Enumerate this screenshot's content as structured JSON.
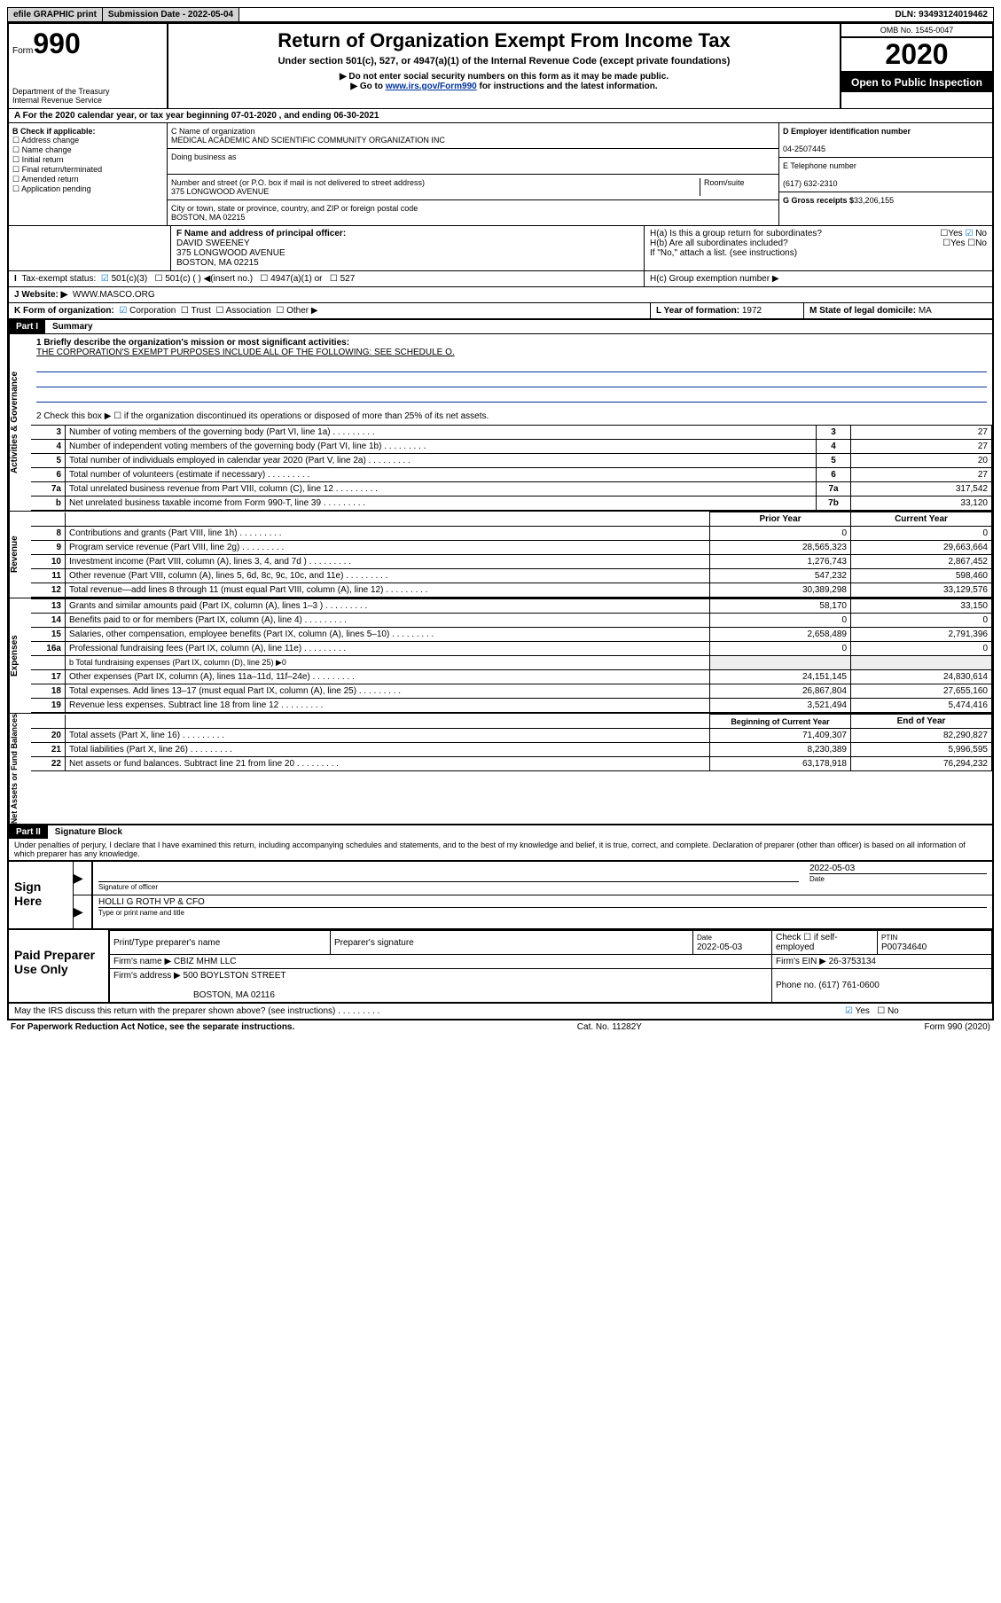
{
  "top_bar": {
    "efile": "efile GRAPHIC print",
    "submission_label": "Submission Date - 2022-05-04",
    "dln": "DLN: 93493124019462"
  },
  "header": {
    "form_label": "Form",
    "form_number": "990",
    "dept": "Department of the Treasury",
    "irs": "Internal Revenue Service",
    "title": "Return of Organization Exempt From Income Tax",
    "subtitle": "Under section 501(c), 527, or 4947(a)(1) of the Internal Revenue Code (except private foundations)",
    "note1": "▶ Do not enter social security numbers on this form as it may be made public.",
    "note2_pre": "▶ Go to ",
    "note2_link": "www.irs.gov/Form990",
    "note2_post": " for instructions and the latest information.",
    "omb": "OMB No. 1545-0047",
    "year": "2020",
    "open": "Open to Public Inspection"
  },
  "A": {
    "text": "A For the 2020 calendar year, or tax year beginning 07-01-2020    , and ending 06-30-2021"
  },
  "B": {
    "label": "B Check if applicable:",
    "items": [
      "Address change",
      "Name change",
      "Initial return",
      "Final return/terminated",
      "Amended return",
      "Application pending"
    ]
  },
  "C": {
    "name_label": "C Name of organization",
    "name": "MEDICAL ACADEMIC AND SCIENTIFIC COMMUNITY ORGANIZATION INC",
    "dba_label": "Doing business as",
    "addr_label": "Number and street (or P.O. box if mail is not delivered to street address)",
    "room_label": "Room/suite",
    "addr": "375 LONGWOOD AVENUE",
    "city_label": "City or town, state or province, country, and ZIP or foreign postal code",
    "city": "BOSTON, MA  02215"
  },
  "D": {
    "label": "D Employer identification number",
    "value": "04-2507445"
  },
  "E": {
    "label": "E Telephone number",
    "value": "(617) 632-2310"
  },
  "G": {
    "label": "G Gross receipts $",
    "value": "33,206,155"
  },
  "F": {
    "label": "F  Name and address of principal officer:",
    "name": "DAVID SWEENEY",
    "addr1": "375 LONGWOOD AVENUE",
    "addr2": "BOSTON, MA  02215"
  },
  "H": {
    "a": "H(a)  Is this a group return for subordinates?",
    "b": "H(b)  Are all subordinates included?",
    "note": "If \"No,\" attach a list. (see instructions)",
    "c": "H(c)  Group exemption number ▶",
    "yes": "Yes",
    "no": "No"
  },
  "I": {
    "label": "Tax-exempt status:",
    "opts": [
      "501(c)(3)",
      "501(c) (   ) ◀(insert no.)",
      "4947(a)(1) or",
      "527"
    ]
  },
  "J": {
    "label": "J    Website: ▶",
    "value": "WWW.MASCO.ORG"
  },
  "K": {
    "label": "K Form of organization:",
    "opts": [
      "Corporation",
      "Trust",
      "Association",
      "Other ▶"
    ]
  },
  "L": {
    "label": "L Year of formation:",
    "value": "1972"
  },
  "M": {
    "label": "M State of legal domicile:",
    "value": "MA"
  },
  "part1": {
    "header": "Part I",
    "title": "Summary",
    "q1": "1  Briefly describe the organization's mission or most significant activities:",
    "mission": "THE CORPORATION'S EXEMPT PURPOSES INCLUDE ALL OF THE FOLLOWING: SEE SCHEDULE O.",
    "q2": "2    Check this box ▶ ☐  if the organization discontinued its operations or disposed of more than 25% of its net assets.",
    "governance_label": "Activities & Governance",
    "revenue_label": "Revenue",
    "expenses_label": "Expenses",
    "netassets_label": "Net Assets or Fund Balances",
    "lines_gov": [
      {
        "n": "3",
        "d": "Number of voting members of the governing body (Part VI, line 1a)",
        "c": "3",
        "v": "27"
      },
      {
        "n": "4",
        "d": "Number of independent voting members of the governing body (Part VI, line 1b)",
        "c": "4",
        "v": "27"
      },
      {
        "n": "5",
        "d": "Total number of individuals employed in calendar year 2020 (Part V, line 2a)",
        "c": "5",
        "v": "20"
      },
      {
        "n": "6",
        "d": "Total number of volunteers (estimate if necessary)",
        "c": "6",
        "v": "27"
      },
      {
        "n": "7a",
        "d": "Total unrelated business revenue from Part VIII, column (C), line 12",
        "c": "7a",
        "v": "317,542"
      },
      {
        "n": "b",
        "d": "Net unrelated business taxable income from Form 990-T, line 39",
        "c": "7b",
        "v": "33,120"
      }
    ],
    "col_prior": "Prior Year",
    "col_current": "Current Year",
    "col_begin": "Beginning of Current Year",
    "col_end": "End of Year",
    "lines_rev": [
      {
        "n": "8",
        "d": "Contributions and grants (Part VIII, line 1h)",
        "p": "0",
        "c": "0"
      },
      {
        "n": "9",
        "d": "Program service revenue (Part VIII, line 2g)",
        "p": "28,565,323",
        "c": "29,663,664"
      },
      {
        "n": "10",
        "d": "Investment income (Part VIII, column (A), lines 3, 4, and 7d )",
        "p": "1,276,743",
        "c": "2,867,452"
      },
      {
        "n": "11",
        "d": "Other revenue (Part VIII, column (A), lines 5, 6d, 8c, 9c, 10c, and 11e)",
        "p": "547,232",
        "c": "598,460"
      },
      {
        "n": "12",
        "d": "Total revenue—add lines 8 through 11 (must equal Part VIII, column (A), line 12)",
        "p": "30,389,298",
        "c": "33,129,576"
      }
    ],
    "lines_exp": [
      {
        "n": "13",
        "d": "Grants and similar amounts paid (Part IX, column (A), lines 1–3 )",
        "p": "58,170",
        "c": "33,150"
      },
      {
        "n": "14",
        "d": "Benefits paid to or for members (Part IX, column (A), line 4)",
        "p": "0",
        "c": "0"
      },
      {
        "n": "15",
        "d": "Salaries, other compensation, employee benefits (Part IX, column (A), lines 5–10)",
        "p": "2,658,489",
        "c": "2,791,396"
      },
      {
        "n": "16a",
        "d": "Professional fundraising fees (Part IX, column (A), line 11e)",
        "p": "0",
        "c": "0"
      }
    ],
    "line_b": "b   Total fundraising expenses (Part IX, column (D), line 25) ▶0",
    "lines_exp2": [
      {
        "n": "17",
        "d": "Other expenses (Part IX, column (A), lines 11a–11d, 11f–24e)",
        "p": "24,151,145",
        "c": "24,830,614"
      },
      {
        "n": "18",
        "d": "Total expenses. Add lines 13–17 (must equal Part IX, column (A), line 25)",
        "p": "26,867,804",
        "c": "27,655,160"
      },
      {
        "n": "19",
        "d": "Revenue less expenses. Subtract line 18 from line 12",
        "p": "3,521,494",
        "c": "5,474,416"
      }
    ],
    "lines_net": [
      {
        "n": "20",
        "d": "Total assets (Part X, line 16)",
        "p": "71,409,307",
        "c": "82,290,827"
      },
      {
        "n": "21",
        "d": "Total liabilities (Part X, line 26)",
        "p": "8,230,389",
        "c": "5,996,595"
      },
      {
        "n": "22",
        "d": "Net assets or fund balances. Subtract line 21 from line 20",
        "p": "63,178,918",
        "c": "76,294,232"
      }
    ]
  },
  "part2": {
    "header": "Part II",
    "title": "Signature Block",
    "penalty": "Under penalties of perjury, I declare that I have examined this return, including accompanying schedules and statements, and to the best of my knowledge and belief, it is true, correct, and complete. Declaration of preparer (other than officer) is based on all information of which preparer has any knowledge.",
    "sign_here": "Sign Here",
    "sig_officer": "Signature of officer",
    "sig_date": "2022-05-03",
    "date_label": "Date",
    "officer_name": "HOLLI G ROTH  VP & CFO",
    "type_label": "Type or print name and title",
    "paid_label": "Paid Preparer Use Only",
    "prep_name_label": "Print/Type preparer's name",
    "prep_sig_label": "Preparer's signature",
    "prep_date": "2022-05-03",
    "check_label": "Check ☐ if self-employed",
    "ptin_label": "PTIN",
    "ptin": "P00734640",
    "firm_name_label": "Firm's name    ▶",
    "firm_name": "CBIZ MHM LLC",
    "firm_ein_label": "Firm's EIN ▶",
    "firm_ein": "26-3753134",
    "firm_addr_label": "Firm's address ▶",
    "firm_addr1": "500 BOYLSTON STREET",
    "firm_addr2": "BOSTON, MA  02116",
    "phone_label": "Phone no.",
    "phone": "(617) 761-0600",
    "discuss": "May the IRS discuss this return with the preparer shown above? (see instructions)"
  },
  "footer": {
    "left": "For Paperwork Reduction Act Notice, see the separate instructions.",
    "mid": "Cat. No. 11282Y",
    "right": "Form 990 (2020)"
  }
}
